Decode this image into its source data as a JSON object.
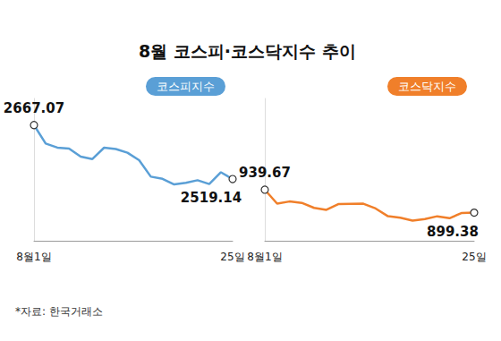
{
  "title": "8월 코스피·코스닥지수 추이",
  "source": "*자료: 한국거래소",
  "chart_data": [
    {
      "type": "line",
      "categories": [
        "8월1일",
        null,
        null,
        null,
        null,
        null,
        null,
        null,
        null,
        null,
        null,
        null,
        null,
        null,
        null,
        null,
        null,
        "25일"
      ],
      "series": [
        {
          "name": "코스피지수",
          "color": "#5a9fd6",
          "values": [
            2667.07,
            2616.47,
            2605.39,
            2602.8,
            2580.71,
            2573.98,
            2605.12,
            2601.56,
            2591.26,
            2570.87,
            2525.64,
            2519.85,
            2504.5,
            2508.8,
            2515.84,
            2505.5,
            2537.68,
            2519.14
          ],
          "value_labels": [
            "2667.07",
            null,
            null,
            null,
            null,
            null,
            null,
            null,
            null,
            null,
            null,
            null,
            null,
            null,
            null,
            null,
            null,
            "2519.14"
          ]
        }
      ],
      "ylim": [
        2350,
        2740
      ],
      "tick_labels": "x",
      "grid": false,
      "marker": "circle"
    },
    {
      "type": "line",
      "categories": [
        "8월1일",
        null,
        null,
        null,
        null,
        null,
        null,
        null,
        null,
        null,
        null,
        null,
        null,
        null,
        null,
        null,
        null,
        "25일"
      ],
      "series": [
        {
          "name": "코스닥지수",
          "color": "#f07f2a",
          "values": [
            939.67,
            915.2,
            919.0,
            916.5,
            907.8,
            904.3,
            914.5,
            914.9,
            915.1,
            906.7,
            893.1,
            890.5,
            885.4,
            888.2,
            893.0,
            889.6,
            898.9,
            899.38
          ],
          "value_labels": [
            "939.67",
            null,
            null,
            null,
            null,
            null,
            null,
            null,
            null,
            null,
            null,
            null,
            null,
            null,
            null,
            null,
            null,
            "899.38"
          ]
        }
      ],
      "ylim": [
        850,
        1100
      ],
      "tick_labels": "x",
      "grid": false,
      "marker": "circle"
    }
  ]
}
